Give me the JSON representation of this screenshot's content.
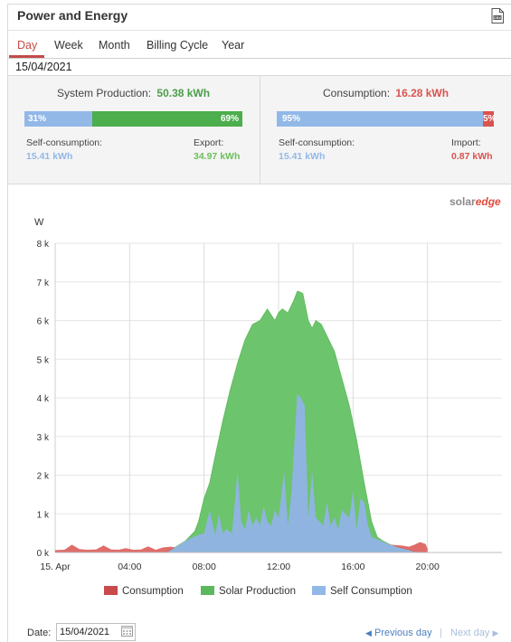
{
  "header": {
    "title": "Power and Energy",
    "csv_icon": "csv-export-icon"
  },
  "tabs": [
    {
      "label": "Day",
      "active": true
    },
    {
      "label": "Week",
      "active": false
    },
    {
      "label": "Month",
      "active": false
    },
    {
      "label": "Billing Cycle",
      "active": false
    },
    {
      "label": "Year",
      "active": false
    }
  ],
  "current_date": "15/04/2021",
  "production": {
    "label": "System Production:",
    "value": "50.38 kWh",
    "self_pct": "31%",
    "export_pct": "69%",
    "self_fraction": 0.31,
    "self_label": "Self-consumption:",
    "self_value": "15.41 kWh",
    "export_label": "Export:",
    "export_value": "34.97 kWh"
  },
  "consumption": {
    "label": "Consumption:",
    "value": "16.28 kWh",
    "self_pct": "95%",
    "import_pct": "5%",
    "self_fraction": 0.95,
    "self_label": "Self-consumption:",
    "self_value": "15.41 kWh",
    "import_label": "Import:",
    "import_value": "0.87 kWh"
  },
  "logo": {
    "solar": "solar",
    "edge": "edge"
  },
  "colors": {
    "production": "#5cb85c",
    "consumption": "#d9534f",
    "self": "#92b8e8",
    "production_fill": "#6cc46c",
    "self_fill": "#8fb4df"
  },
  "chart_data": {
    "type": "area",
    "ylabel": "W",
    "yticks": [
      "0 k",
      "1 k",
      "2 k",
      "3 k",
      "4 k",
      "5 k",
      "6 k",
      "7 k",
      "8 k"
    ],
    "ylim": [
      0,
      8000
    ],
    "xticks": [
      "15. Apr",
      "04:00",
      "08:00",
      "12:00",
      "16:00",
      "20:00"
    ],
    "xlim_hours": [
      0,
      24
    ],
    "grid": true,
    "legend_position": "bottom",
    "series": [
      {
        "name": "Consumption",
        "color": "#d9534f",
        "x": [
          0,
          0.5,
          0.9,
          1.3,
          1.7,
          2.2,
          2.6,
          3.0,
          3.4,
          3.8,
          4.2,
          4.6,
          5.0,
          5.4,
          5.8,
          6.2,
          6.6,
          7.0,
          7.5,
          8,
          10,
          12,
          14,
          16,
          17,
          18,
          18.6,
          19.0,
          19.3,
          19.6,
          19.9,
          20.0
        ],
        "y": [
          60,
          70,
          200,
          90,
          70,
          80,
          180,
          80,
          70,
          110,
          70,
          75,
          160,
          70,
          130,
          150,
          120,
          180,
          250,
          300,
          400,
          500,
          500,
          400,
          300,
          200,
          180,
          150,
          200,
          270,
          220,
          100
        ]
      },
      {
        "name": "Solar Production",
        "color": "#5cb85c",
        "x": [
          6.0,
          6.5,
          7.0,
          7.5,
          7.7,
          8.0,
          8.3,
          8.6,
          9.0,
          9.4,
          9.8,
          10.2,
          10.6,
          11.0,
          11.4,
          11.8,
          12.0,
          12.2,
          12.5,
          12.8,
          13.0,
          13.1,
          13.3,
          13.6,
          13.8,
          14.0,
          14.3,
          14.6,
          15.0,
          15.4,
          15.8,
          16.2,
          16.6,
          17.0,
          17.3,
          17.6,
          18.0,
          18.5,
          19.0,
          19.4
        ],
        "y": [
          0,
          150,
          300,
          550,
          800,
          1400,
          1800,
          2500,
          3400,
          4200,
          4900,
          5500,
          5900,
          6000,
          6300,
          6000,
          6200,
          6300,
          6200,
          6500,
          6750,
          6750,
          6700,
          6000,
          5800,
          6000,
          5900,
          5600,
          5200,
          4500,
          3800,
          2900,
          1800,
          800,
          400,
          300,
          200,
          120,
          60,
          0
        ]
      },
      {
        "name": "Self Consumption",
        "color": "#92b8e8",
        "x": [
          6.0,
          6.5,
          7.0,
          7.5,
          8.0,
          8.3,
          8.6,
          8.8,
          9.0,
          9.2,
          9.5,
          9.8,
          10.0,
          10.2,
          10.4,
          10.6,
          10.8,
          11.0,
          11.2,
          11.4,
          11.6,
          11.8,
          12.0,
          12.3,
          12.5,
          12.7,
          13.0,
          13.2,
          13.4,
          13.6,
          13.8,
          14.0,
          14.2,
          14.4,
          14.6,
          14.8,
          15.0,
          15.2,
          15.4,
          15.6,
          15.8,
          16.0,
          16.2,
          16.4,
          16.6,
          16.8,
          17.0,
          17.5,
          18.0,
          18.5,
          19.0,
          19.4
        ],
        "y": [
          0,
          150,
          300,
          420,
          500,
          1100,
          450,
          1000,
          500,
          600,
          500,
          2100,
          800,
          600,
          1100,
          700,
          900,
          700,
          1200,
          800,
          700,
          1100,
          900,
          2100,
          700,
          1600,
          4100,
          4000,
          3800,
          900,
          2100,
          900,
          800,
          700,
          1300,
          700,
          900,
          600,
          1100,
          1000,
          900,
          1600,
          600,
          1400,
          1300,
          700,
          400,
          300,
          200,
          120,
          60,
          0
        ]
      }
    ]
  },
  "legend": [
    {
      "label": "Consumption",
      "color": "#c94a4a"
    },
    {
      "label": "Solar Production",
      "color": "#5cb85c"
    },
    {
      "label": "Self Consumption",
      "color": "#92b8e8"
    }
  ],
  "footer": {
    "date_label": "Date:",
    "date_value": "15/04/2021",
    "prev_label": "Previous day",
    "separator": "|",
    "next_label": "Next day"
  }
}
